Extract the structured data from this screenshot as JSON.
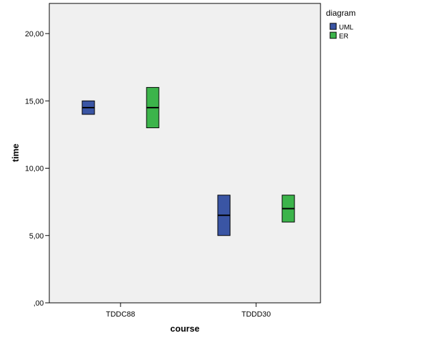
{
  "chart_data": {
    "type": "boxplot",
    "title": "",
    "xlabel": "course",
    "ylabel": "time",
    "categories": [
      "TDDC88",
      "TDDD30"
    ],
    "ylim": [
      0,
      22
    ],
    "yticks": [
      0,
      5,
      10,
      15,
      20
    ],
    "ytick_labels": [
      ",00",
      "5,00",
      "10,00",
      "15,00",
      "20,00"
    ],
    "grid": false,
    "legend": {
      "title": "diagram",
      "position": "top-right"
    },
    "series": [
      {
        "name": "UML",
        "color": "#3a55a4",
        "boxes": [
          {
            "category": "TDDC88",
            "min": 14,
            "q1": 14,
            "median": 14.5,
            "q3": 15,
            "max": 15
          },
          {
            "category": "TDDD30",
            "min": 5,
            "q1": 5,
            "median": 6.5,
            "q3": 8,
            "max": 8
          }
        ]
      },
      {
        "name": "ER",
        "color": "#3cb44b",
        "boxes": [
          {
            "category": "TDDC88",
            "min": 13,
            "q1": 13,
            "median": 14.5,
            "q3": 16,
            "max": 16
          },
          {
            "category": "TDDD30",
            "min": 6,
            "q1": 6,
            "median": 7,
            "q3": 8,
            "max": 8
          }
        ]
      }
    ],
    "plot_background": "#f0f0f0"
  }
}
